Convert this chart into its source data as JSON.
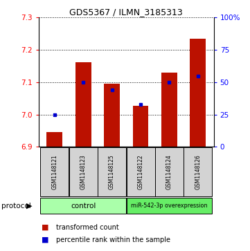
{
  "title": "GDS5367 / ILMN_3185313",
  "samples": [
    "GSM1148121",
    "GSM1148123",
    "GSM1148125",
    "GSM1148122",
    "GSM1148124",
    "GSM1148126"
  ],
  "transformed_counts": [
    6.945,
    7.162,
    7.095,
    7.027,
    7.13,
    7.235
  ],
  "percentile_ranks": [
    25,
    50,
    44,
    33,
    50,
    55
  ],
  "ylim_left": [
    6.9,
    7.3
  ],
  "ylim_right": [
    0,
    100
  ],
  "yticks_left": [
    6.9,
    7.0,
    7.1,
    7.2,
    7.3
  ],
  "yticks_right": [
    0,
    25,
    50,
    75,
    100
  ],
  "bar_color": "#bb1100",
  "dot_color": "#0000cc",
  "bar_bottom": 6.9,
  "legend_bar_label": "transformed count",
  "legend_dot_label": "percentile rank within the sample",
  "protocol_label": "protocol",
  "ctrl_color": "#aaffaa",
  "mir_color": "#66ee66",
  "ctrl_label": "control",
  "mir_label": "miR-542-3p overexpression",
  "background": "#ffffff",
  "fig_width": 3.61,
  "fig_height": 3.63,
  "dpi": 100
}
